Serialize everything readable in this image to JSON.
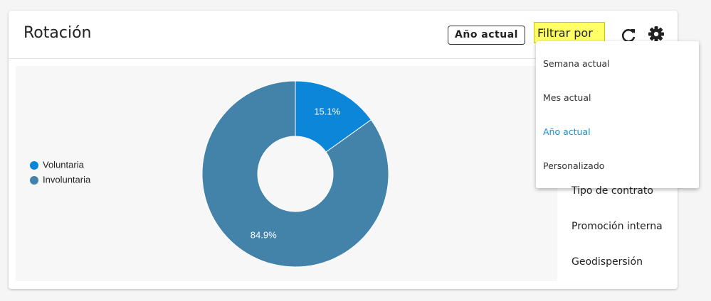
{
  "header": {
    "title": "Rotación",
    "badge": "Año actual",
    "filter": "Filtrar por"
  },
  "dropdown": {
    "items": [
      "Semana actual",
      "Mes actual",
      "Año actual",
      "Personalizado"
    ],
    "selected": 2
  },
  "side_menu": {
    "items": [
      "Tipo de contrato",
      "Promoción interna",
      "Geodispersión"
    ]
  },
  "chart_data": {
    "type": "pie",
    "donut": true,
    "categories": [
      "Voluntaria",
      "Involuntaria"
    ],
    "values": [
      15.1,
      84.9
    ],
    "value_labels": [
      "15.1%",
      "84.9%"
    ],
    "colors": [
      "#0b86d8",
      "#4382a9"
    ],
    "legend": "left"
  }
}
